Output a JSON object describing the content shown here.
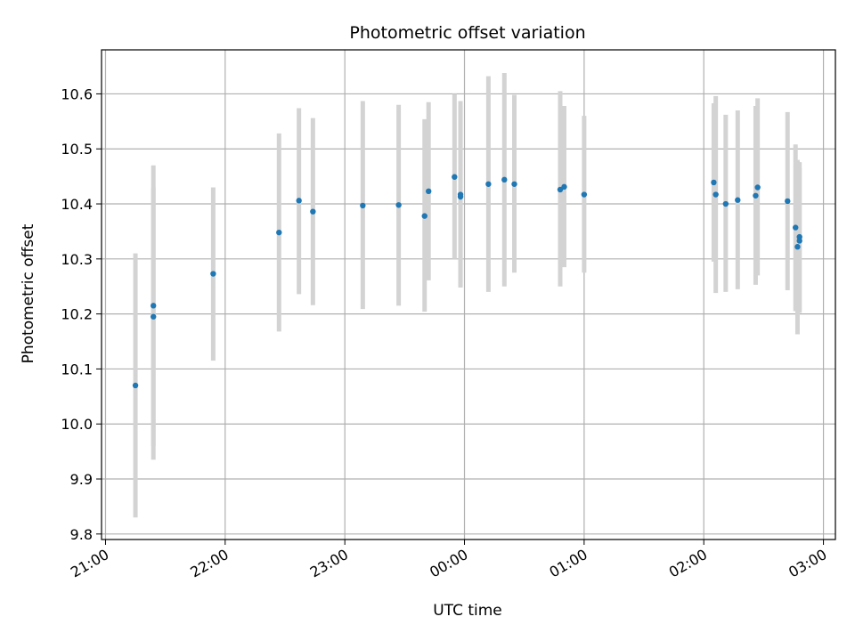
{
  "chart_data": {
    "type": "scatter",
    "title": "Photometric offset variation",
    "xlabel": "UTC time",
    "ylabel": "Photometric offset",
    "xlim": [
      "20:58",
      "03:06"
    ],
    "ylim": [
      9.79,
      10.68
    ],
    "x_ticks": [
      "21:00",
      "22:00",
      "23:00",
      "00:00",
      "01:00",
      "02:00",
      "03:00"
    ],
    "y_ticks": [
      "9.8",
      "9.9",
      "10.0",
      "10.1",
      "10.2",
      "10.3",
      "10.4",
      "10.5",
      "10.6"
    ],
    "grid": true,
    "series": [
      {
        "error_bars": true,
        "points": [
          {
            "t": "21:15",
            "y": 10.07,
            "lo": 9.83,
            "hi": 10.31
          },
          {
            "t": "21:24",
            "y": 10.195,
            "lo": 9.96,
            "hi": 10.43
          },
          {
            "t": "21:24",
            "y": 10.215,
            "lo": 9.935,
            "hi": 10.47
          },
          {
            "t": "21:54",
            "y": 10.273,
            "lo": 10.115,
            "hi": 10.43
          },
          {
            "t": "22:27",
            "y": 10.348,
            "lo": 10.168,
            "hi": 10.528
          },
          {
            "t": "22:37",
            "y": 10.406,
            "lo": 10.236,
            "hi": 10.574
          },
          {
            "t": "22:44",
            "y": 10.386,
            "lo": 10.216,
            "hi": 10.556
          },
          {
            "t": "23:09",
            "y": 10.397,
            "lo": 10.209,
            "hi": 10.587
          },
          {
            "t": "23:27",
            "y": 10.398,
            "lo": 10.215,
            "hi": 10.58
          },
          {
            "t": "23:40",
            "y": 10.378,
            "lo": 10.204,
            "hi": 10.554
          },
          {
            "t": "23:42",
            "y": 10.423,
            "lo": 10.261,
            "hi": 10.585
          },
          {
            "t": "23:55",
            "y": 10.449,
            "lo": 10.3,
            "hi": 10.6
          },
          {
            "t": "23:58",
            "y": 10.413,
            "lo": 10.25,
            "hi": 10.578
          },
          {
            "t": "23:58",
            "y": 10.417,
            "lo": 10.248,
            "hi": 10.587
          },
          {
            "t": "00:12",
            "y": 10.436,
            "lo": 10.24,
            "hi": 10.632
          },
          {
            "t": "00:20",
            "y": 10.444,
            "lo": 10.25,
            "hi": 10.638
          },
          {
            "t": "00:25",
            "y": 10.436,
            "lo": 10.275,
            "hi": 10.598
          },
          {
            "t": "00:48",
            "y": 10.426,
            "lo": 10.25,
            "hi": 10.605
          },
          {
            "t": "00:50",
            "y": 10.431,
            "lo": 10.285,
            "hi": 10.578
          },
          {
            "t": "01:00",
            "y": 10.417,
            "lo": 10.275,
            "hi": 10.56
          },
          {
            "t": "02:05",
            "y": 10.439,
            "lo": 10.295,
            "hi": 10.583
          },
          {
            "t": "02:06",
            "y": 10.417,
            "lo": 10.238,
            "hi": 10.596
          },
          {
            "t": "02:11",
            "y": 10.4,
            "lo": 10.24,
            "hi": 10.562
          },
          {
            "t": "02:17",
            "y": 10.407,
            "lo": 10.245,
            "hi": 10.57
          },
          {
            "t": "02:26",
            "y": 10.415,
            "lo": 10.253,
            "hi": 10.578
          },
          {
            "t": "02:27",
            "y": 10.43,
            "lo": 10.27,
            "hi": 10.592
          },
          {
            "t": "02:42",
            "y": 10.405,
            "lo": 10.243,
            "hi": 10.567
          },
          {
            "t": "02:46",
            "y": 10.357,
            "lo": 10.205,
            "hi": 10.508
          },
          {
            "t": "02:47",
            "y": 10.322,
            "lo": 10.163,
            "hi": 10.48
          },
          {
            "t": "02:48",
            "y": 10.34,
            "lo": 10.205,
            "hi": 10.476
          },
          {
            "t": "02:48",
            "y": 10.333,
            "lo": 10.202,
            "hi": 10.465
          }
        ]
      }
    ],
    "colors": {
      "point": "#1f77b4",
      "error_bar": "#d3d3d3",
      "grid": "#b0b0b0",
      "axis": "#000000"
    }
  }
}
